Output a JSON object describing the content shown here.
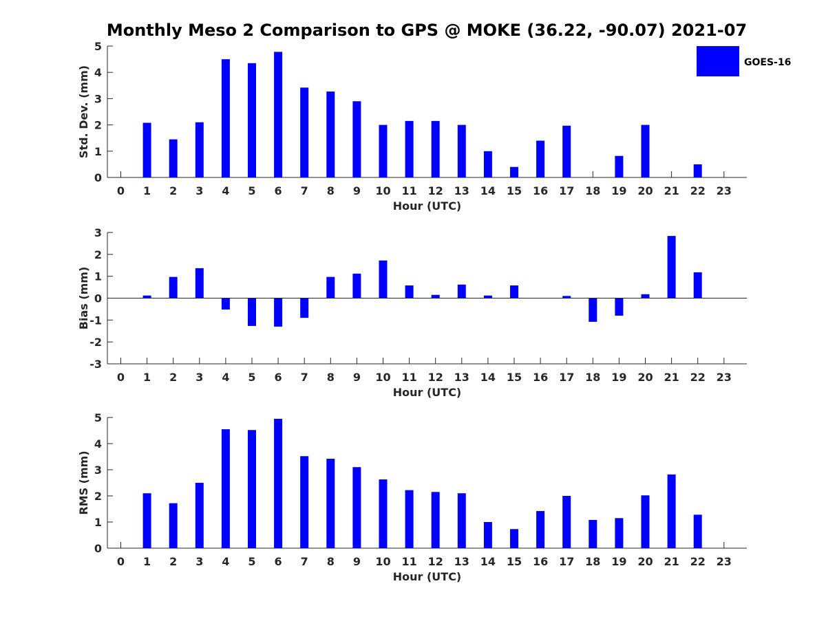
{
  "title": "Monthly Meso 2 Comparison to GPS @ MOKE (36.22, -90.07) 2021-07",
  "bar_color": "#0000ff",
  "legend": {
    "label": "GOES-16",
    "placement": "top-right"
  },
  "chart_data": [
    {
      "type": "bar",
      "xlabel": "Hour (UTC)",
      "ylabel": "Std. Dev. (mm)",
      "ylim": [
        0,
        5
      ],
      "yticks": [
        "0",
        "1",
        "2",
        "3",
        "4",
        "5"
      ],
      "categories": [
        "0",
        "1",
        "2",
        "3",
        "4",
        "5",
        "6",
        "7",
        "8",
        "9",
        "10",
        "11",
        "12",
        "13",
        "14",
        "15",
        "16",
        "17",
        "18",
        "19",
        "20",
        "21",
        "22",
        "23"
      ],
      "series": [
        {
          "name": "GOES-16",
          "values": [
            null,
            2.08,
            1.45,
            2.1,
            4.5,
            4.35,
            4.78,
            3.42,
            3.27,
            2.9,
            2.0,
            2.15,
            2.15,
            2.0,
            1.0,
            0.4,
            1.4,
            1.97,
            null,
            0.82,
            2.0,
            null,
            0.5,
            null
          ]
        }
      ]
    },
    {
      "type": "bar",
      "xlabel": "Hour (UTC)",
      "ylabel": "Bias (mm)",
      "ylim": [
        -3,
        3
      ],
      "yticks": [
        "-3",
        "-2",
        "-1",
        "0",
        "1",
        "2",
        "3"
      ],
      "zero_line": true,
      "categories": [
        "0",
        "1",
        "2",
        "3",
        "4",
        "5",
        "6",
        "7",
        "8",
        "9",
        "10",
        "11",
        "12",
        "13",
        "14",
        "15",
        "16",
        "17",
        "18",
        "19",
        "20",
        "21",
        "22",
        "23"
      ],
      "series": [
        {
          "name": "GOES-16",
          "values": [
            null,
            0.12,
            0.97,
            1.37,
            -0.52,
            -1.27,
            -1.3,
            -0.9,
            0.97,
            1.12,
            1.72,
            0.58,
            0.15,
            0.62,
            0.12,
            0.58,
            null,
            0.1,
            -1.08,
            -0.8,
            0.18,
            2.84,
            1.18,
            null
          ]
        }
      ]
    },
    {
      "type": "bar",
      "xlabel": "Hour (UTC)",
      "ylabel": "RMS (mm)",
      "ylim": [
        0,
        5
      ],
      "yticks": [
        "0",
        "1",
        "2",
        "3",
        "4",
        "5"
      ],
      "categories": [
        "0",
        "1",
        "2",
        "3",
        "4",
        "5",
        "6",
        "7",
        "8",
        "9",
        "10",
        "11",
        "12",
        "13",
        "14",
        "15",
        "16",
        "17",
        "18",
        "19",
        "20",
        "21",
        "22",
        "23"
      ],
      "series": [
        {
          "name": "GOES-16",
          "values": [
            null,
            2.1,
            1.72,
            2.5,
            4.55,
            4.52,
            4.95,
            3.52,
            3.42,
            3.1,
            2.63,
            2.22,
            2.15,
            2.1,
            1.0,
            0.73,
            1.42,
            2.0,
            1.08,
            1.15,
            2.02,
            2.82,
            1.28,
            null
          ]
        }
      ]
    }
  ]
}
